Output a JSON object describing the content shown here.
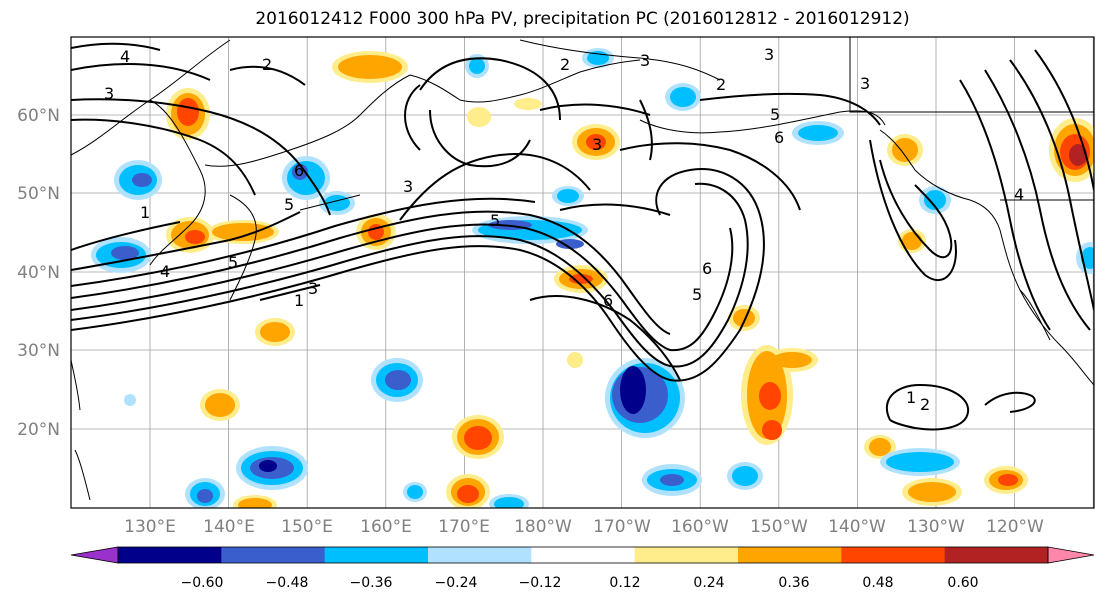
{
  "title": "2016012412 F000 300 hPa PV, precipitation PC (2016012812 - 2016012912)",
  "map": {
    "lat_labels": [
      "60°N",
      "50°N",
      "40°N",
      "30°N",
      "20°N"
    ],
    "lon_labels": [
      "130°E",
      "140°E",
      "150°E",
      "160°E",
      "170°E",
      "180°W",
      "170°W",
      "160°W",
      "150°W",
      "140°W",
      "130°W",
      "120°W"
    ],
    "pv_contour_labels": [
      "4",
      "3",
      "2",
      "3",
      "5",
      "6",
      "5",
      "3",
      "4",
      "5",
      "6",
      "3",
      "3",
      "2",
      "3",
      "2",
      "1",
      "4",
      "5",
      "6",
      "2",
      "1",
      "6",
      "5",
      "3",
      "1"
    ]
  },
  "colorbar": {
    "ticks": [
      "−0.60",
      "−0.48",
      "−0.36",
      "−0.24",
      "−0.12",
      "0.12",
      "0.24",
      "0.36",
      "0.48",
      "0.60"
    ],
    "colors": [
      "#9932CC",
      "#00008B",
      "#3A5FCD",
      "#00BFFF",
      "#B0E2FF",
      "#FFFFFF",
      "#FFEC8B",
      "#FFA500",
      "#FF4500",
      "#B22222",
      "#FF88AA"
    ]
  }
}
